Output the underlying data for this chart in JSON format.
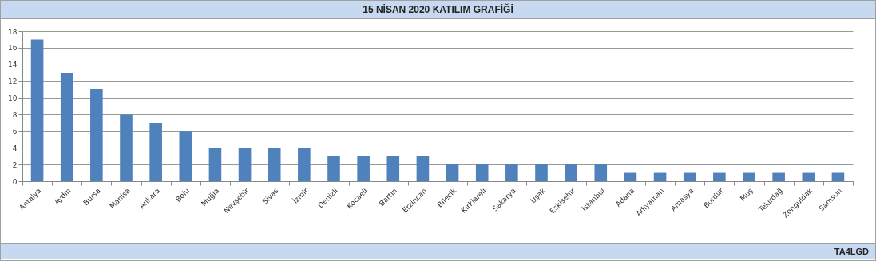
{
  "chart_data": {
    "type": "bar",
    "title": "15 NİSAN 2020 KATILIM GRAFİĞİ",
    "categories": [
      "Antalya",
      "Aydın",
      "Bursa",
      "Manisa",
      "Ankara",
      "Bolu",
      "Muğla",
      "Nevşehir",
      "Sivas",
      "İzmir",
      "Denizli",
      "Kocaeli",
      "Bartın",
      "Erzincan",
      "Bilecik",
      "Kırklareli",
      "Sakarya",
      "Uşak",
      "Eskişehir",
      "İstanbul",
      "Adana",
      "Adıyaman",
      "Amasya",
      "Burdur",
      "Muş",
      "Tekirdağ",
      "Zonguldak",
      "Samsun"
    ],
    "values": [
      17,
      13,
      11,
      8,
      7,
      6,
      4,
      4,
      4,
      4,
      3,
      3,
      3,
      3,
      2,
      2,
      2,
      2,
      2,
      2,
      1,
      1,
      1,
      1,
      1,
      1,
      1,
      1
    ],
    "color": "#4f81bd",
    "ylim": [
      0,
      18
    ],
    "yticks": [
      0,
      2,
      4,
      6,
      8,
      10,
      12,
      14,
      16,
      18
    ],
    "grid": "y",
    "annotations": [
      "TA4LGD"
    ]
  }
}
